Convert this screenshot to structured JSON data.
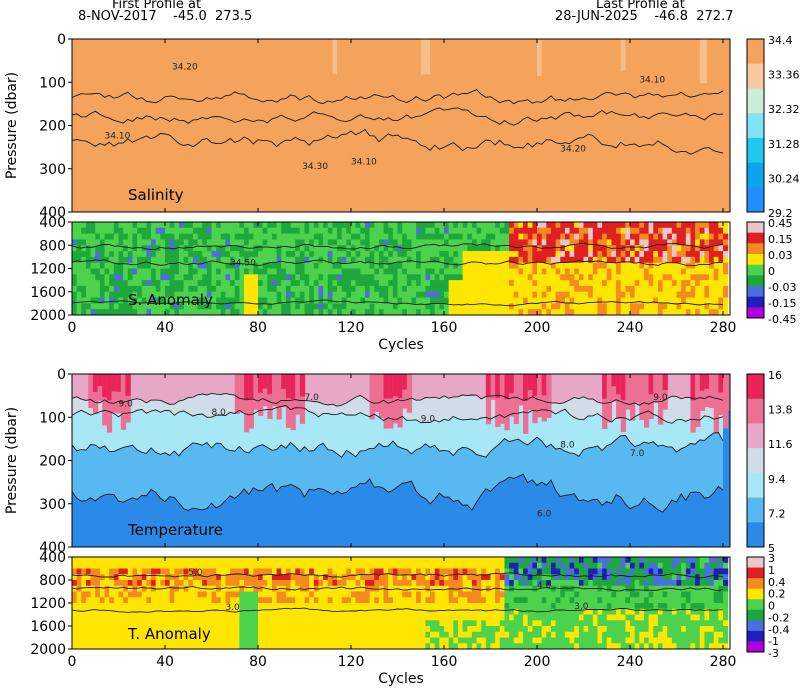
{
  "header": {
    "first_title": "First Profile at",
    "first_info": "8-NOV-2017    -45.0  273.5",
    "last_title": "Last Profile at",
    "last_info": "28-JUN-2025    -46.8  272.7"
  },
  "colors": {
    "salinity": [
      "#1e90ff",
      "#0fa2ef",
      "#1ec8f0",
      "#7fe3f5",
      "#cdeed6",
      "#f8c8a0",
      "#f3a35b"
    ],
    "s_anomaly": [
      "#b000e0",
      "#2020b8",
      "#4a6fe0",
      "#1ea83c",
      "#4cd24c",
      "#ffe600",
      "#f58a1e",
      "#e02020",
      "#e8c8c8"
    ],
    "temperature": [
      "#2b8ae8",
      "#58b9f0",
      "#a7e7f6",
      "#cfdde8",
      "#e7a8c8",
      "#ec6f94",
      "#e8245a"
    ],
    "t_anomaly": [
      "#b000e0",
      "#2020b8",
      "#4a6fe0",
      "#1ea83c",
      "#4cd24c",
      "#ffe600",
      "#f58a1e",
      "#e02020",
      "#e8c8c8"
    ]
  },
  "chart_data": [
    {
      "type": "heatmap",
      "title": "Salinity",
      "ylabel": "Pressure (dbar)",
      "xlim": [
        0,
        283
      ],
      "ylim": [
        400,
        0
      ],
      "yticks": [
        "0",
        "100",
        "200",
        "300",
        "400"
      ],
      "colorbar_labels": [
        "34.4",
        "33.36",
        "32.32",
        "31.28",
        "30.24",
        "29.2"
      ],
      "contour_labels": [
        "34.10",
        "34.20",
        "34.30",
        "34.10",
        "34.20",
        "34.10"
      ]
    },
    {
      "type": "heatmap",
      "title": "S. Anomaly",
      "xlim": [
        0,
        283
      ],
      "ylim": [
        2000,
        400
      ],
      "yticks": [
        "400",
        "800",
        "1200",
        "1600",
        "2000"
      ],
      "colorbar_labels": [
        "0.45",
        "0.15",
        "0.03",
        "0",
        "-0.03",
        "-0.15",
        "-0.45"
      ],
      "contour_labels": [
        "34.50"
      ],
      "xlabel": "Cycles",
      "xticks": [
        "0",
        "40",
        "80",
        "120",
        "160",
        "200",
        "240",
        "280"
      ]
    },
    {
      "type": "heatmap",
      "title": "Temperature",
      "ylabel": "Pressure (dbar)",
      "xlim": [
        0,
        283
      ],
      "ylim": [
        400,
        0
      ],
      "yticks": [
        "0",
        "100",
        "200",
        "300",
        "400"
      ],
      "colorbar_labels": [
        "16",
        "13.8",
        "11.6",
        "9.4",
        "7.2",
        "5"
      ],
      "contour_labels": [
        "9.0",
        "8.0",
        "7.0",
        "9.0",
        "8.0",
        "9.0",
        "7.0",
        "6.0"
      ]
    },
    {
      "type": "heatmap",
      "title": "T. Anomaly",
      "xlim": [
        0,
        283
      ],
      "ylim": [
        2000,
        400
      ],
      "yticks": [
        "400",
        "800",
        "1200",
        "1600",
        "2000"
      ],
      "colorbar_labels": [
        "3",
        "1",
        "0.4",
        "0.2",
        "0",
        "-0.2",
        "-0.4",
        "-1",
        "-3"
      ],
      "contour_labels": [
        "5.0",
        "4.0",
        "3.0",
        "3.0"
      ],
      "xlabel": "Cycles",
      "xticks": [
        "0",
        "40",
        "80",
        "120",
        "160",
        "200",
        "240",
        "280"
      ]
    }
  ]
}
